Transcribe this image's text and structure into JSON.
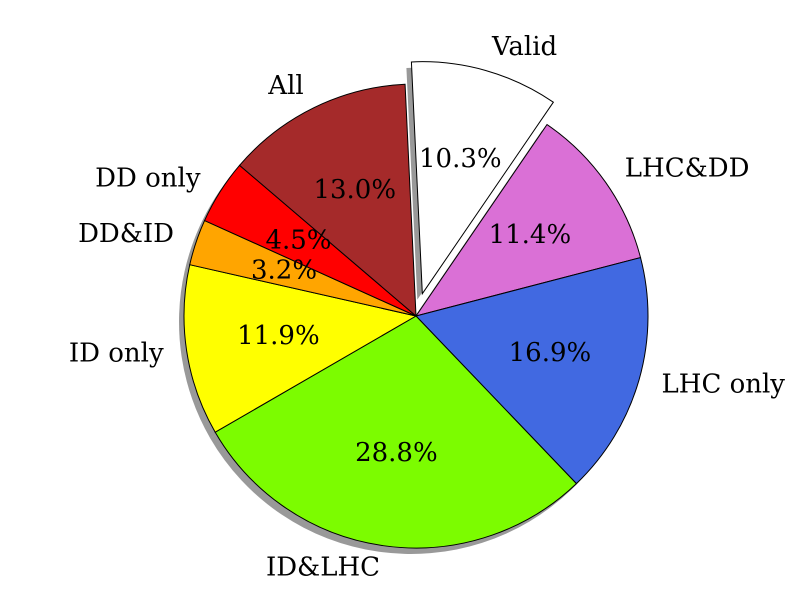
{
  "chart_data": {
    "type": "pie",
    "categories": [
      "Valid",
      "LHC&DD",
      "LHC only",
      "ID&LHC",
      "ID only",
      "DD&ID",
      "DD only",
      "All"
    ],
    "values": [
      10.3,
      11.4,
      16.9,
      28.8,
      11.9,
      3.2,
      4.5,
      13.0
    ],
    "value_labels": [
      "10.3%",
      "11.4%",
      "16.9%",
      "28.8%",
      "11.9%",
      "3.2%",
      "4.5%",
      "13.0%"
    ],
    "colors": [
      "#ffffff",
      "#da70d6",
      "#4169e1",
      "#7cfc00",
      "#ffff00",
      "#ffa500",
      "#ff0000",
      "#a52a2a"
    ],
    "explode": [
      0.1,
      0,
      0,
      0,
      0,
      0,
      0,
      0
    ],
    "shadow": true
  }
}
